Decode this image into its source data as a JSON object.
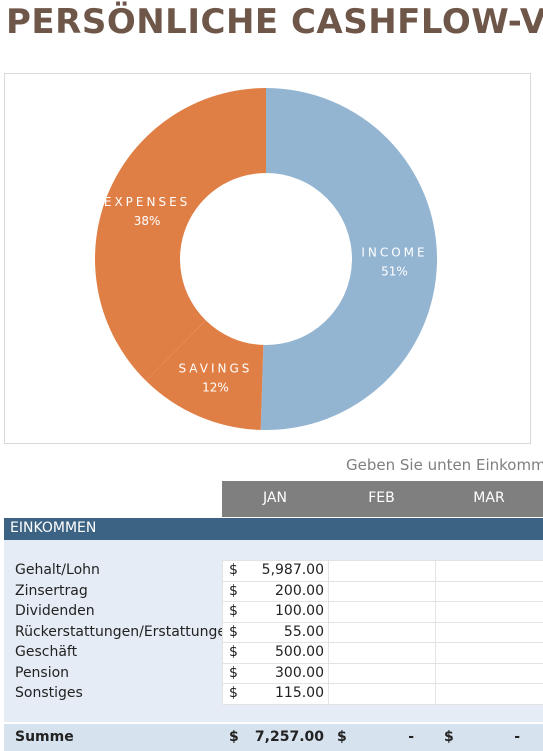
{
  "header": {
    "title": "PERSÖNLICHE CASHFLOW-VORSCHAU"
  },
  "chart_data": {
    "type": "pie",
    "donut": true,
    "categories": [
      "INCOME",
      "SAVINGS",
      "EXPENSES"
    ],
    "values": [
      51,
      12,
      38
    ],
    "value_labels": [
      "51%",
      "12%",
      "38%"
    ],
    "colors": [
      "#93b5d2",
      "#e07f45",
      "#e07f45"
    ]
  },
  "note": "Geben Sie unten Einkommen",
  "table": {
    "columns": [
      "JAN",
      "FEB",
      "MAR"
    ],
    "section": "EINKOMMEN",
    "rows": [
      {
        "label": "Gehalt/Lohn",
        "currency": "$",
        "amount": "5,987.00"
      },
      {
        "label": "Zinsertrag",
        "currency": "$",
        "amount": "200.00"
      },
      {
        "label": "Dividenden",
        "currency": "$",
        "amount": "100.00"
      },
      {
        "label": "Rückerstattungen/Erstattungen",
        "currency": "$",
        "amount": "55.00"
      },
      {
        "label": "Geschäft",
        "currency": "$",
        "amount": "500.00"
      },
      {
        "label": "Pension",
        "currency": "$",
        "amount": "300.00"
      },
      {
        "label": "Sonstiges",
        "currency": "$",
        "amount": "115.00"
      }
    ],
    "total": {
      "label": "Summe",
      "cells": [
        {
          "currency": "$",
          "amount": "7,257.00"
        },
        {
          "currency": "$",
          "amount": "-"
        },
        {
          "currency": "$",
          "amount": "-"
        }
      ]
    }
  }
}
